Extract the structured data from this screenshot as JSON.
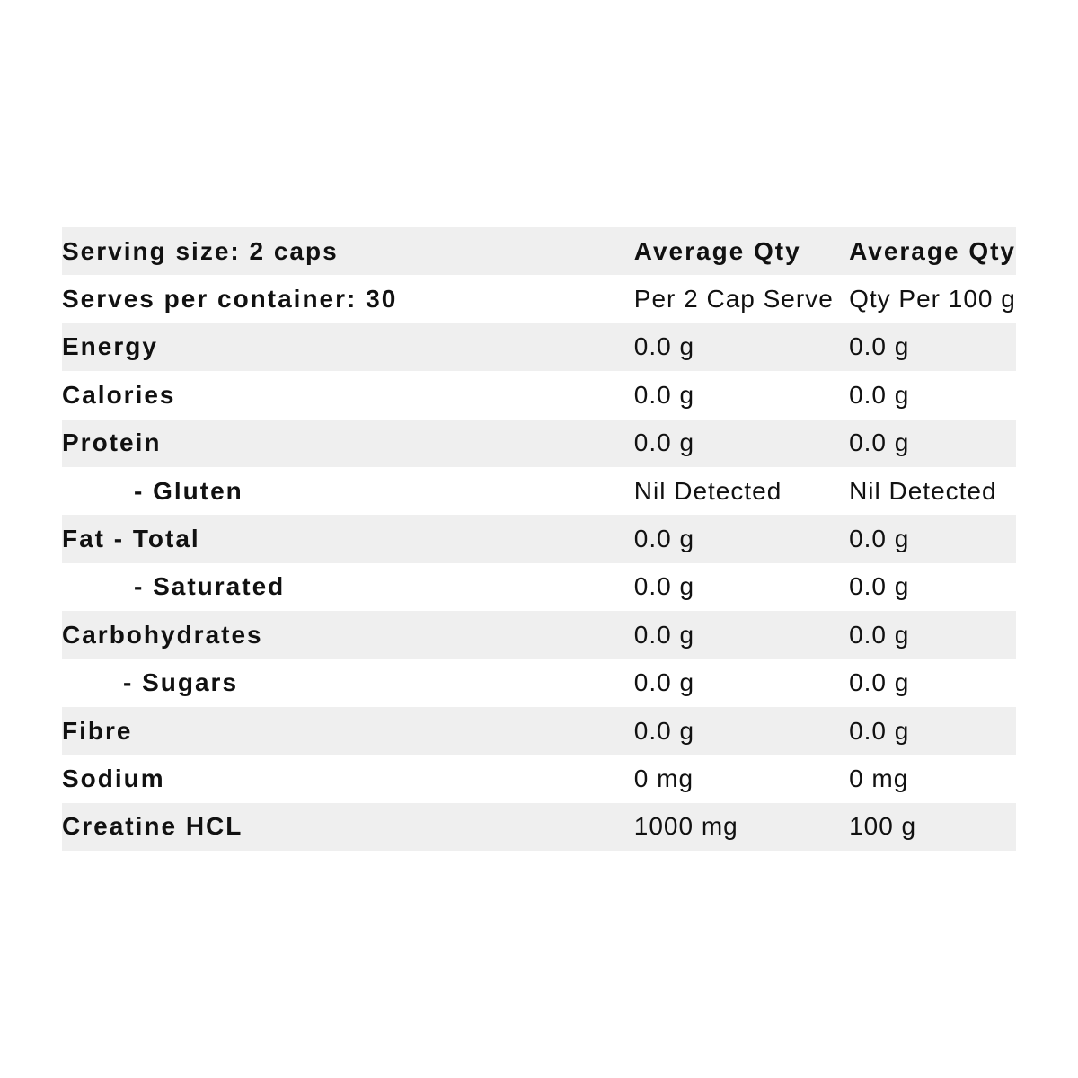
{
  "table": {
    "rows": [
      [
        "Serving size: 2 caps",
        "Average Qty",
        "Average Qty"
      ],
      [
        "Serves per container: 30",
        "Per 2 Cap Serve",
        "Qty Per 100 g"
      ],
      [
        "Energy",
        "0.0 g",
        "0.0 g"
      ],
      [
        "Calories",
        "0.0 g",
        "0.0 g"
      ],
      [
        "Protein",
        "0.0 g",
        "0.0 g"
      ],
      [
        "- Gluten",
        "Nil Detected",
        "Nil Detected"
      ],
      [
        "Fat - Total",
        "0.0 g",
        "0.0 g"
      ],
      [
        "- Saturated",
        "0.0 g",
        "0.0 g"
      ],
      [
        "Carbohydrates",
        "0.0 g",
        "0.0 g"
      ],
      [
        "- Sugars",
        "0.0 g",
        "0.0 g"
      ],
      [
        "Fibre",
        "0.0 g",
        "0.0 g"
      ],
      [
        "Sodium",
        "0 mg",
        "0 mg"
      ],
      [
        "Creatine HCL",
        "1000 mg",
        "100 g"
      ]
    ]
  }
}
